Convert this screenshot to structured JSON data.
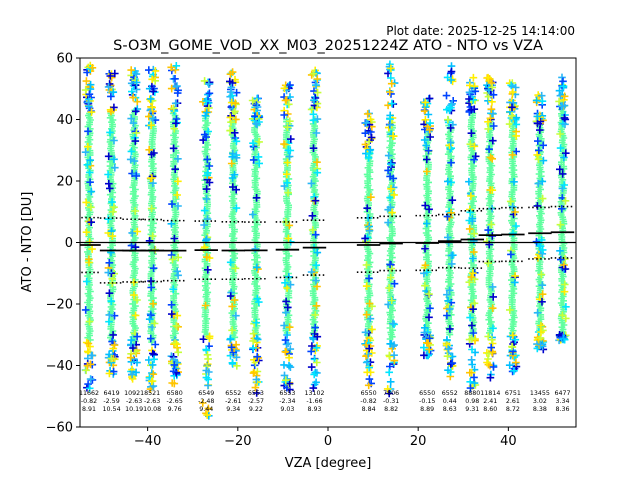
{
  "plot_date": "Plot date: 2025-12-25 14:14:00",
  "chart_data": {
    "type": "scatter",
    "title": "S-O3M_GOME_VOD_XX_M03_20251224Z ATO - NTO vs VZA",
    "xlabel": "VZA [degree]",
    "ylabel": "ATO - NTO [DU]",
    "xlim": [
      -55,
      55
    ],
    "ylim": [
      -60,
      60
    ],
    "xticks": [
      -40,
      -20,
      0,
      20,
      40
    ],
    "xtick_labels": [
      "−40",
      "−20",
      "0",
      "20",
      "40"
    ],
    "yticks": [
      -60,
      -40,
      -20,
      0,
      20,
      40,
      60
    ],
    "ytick_labels": [
      "−60",
      "−40",
      "−20",
      "0",
      "20",
      "40",
      "60"
    ],
    "marker": "+",
    "zero_line": 0,
    "colors": {
      "core": "#5fff9f",
      "scatter": [
        "#00e5ff",
        "#29b6f6",
        "#00bfff",
        "#ffee00",
        "#c6ff3a",
        "#ffc400",
        "#0044ff",
        "#0000cc"
      ],
      "mean_line": "#000000",
      "std_line": "#000000"
    },
    "bins": [
      {
        "vza": -53,
        "count": "11662",
        "mean": -0.82,
        "std": 8.91,
        "mean_label": "-0.82",
        "std_label": "8.91",
        "ymin": -48,
        "ymax": 58,
        "core_min": -32,
        "core_max": 42
      },
      {
        "vza": -48,
        "count": "6419",
        "mean": -2.59,
        "std": 10.54,
        "mean_label": "-2.59",
        "std_label": "10.54",
        "ymin": -43,
        "ymax": 55,
        "core_min": -32,
        "core_max": 42
      },
      {
        "vza": -43,
        "count": "10921",
        "mean": -2.63,
        "std": 10.19,
        "mean_label": "-2.63",
        "std_label": "10.19",
        "ymin": -45,
        "ymax": 57,
        "core_min": -33,
        "core_max": 43
      },
      {
        "vza": -39,
        "count": "8521",
        "mean": -2.63,
        "std": 10.08,
        "mean_label": "-2.63",
        "std_label": "10.08",
        "ymin": -48,
        "ymax": 58,
        "core_min": -33,
        "core_max": 42
      },
      {
        "vza": -34,
        "count": "6580",
        "mean": -2.65,
        "std": 9.76,
        "mean_label": "-2.65",
        "std_label": "9.76",
        "ymin": -46,
        "ymax": 58,
        "core_min": -32,
        "core_max": 42
      },
      {
        "vza": -27,
        "count": "6549",
        "mean": -2.48,
        "std": 9.44,
        "mean_label": "-2.48",
        "std_label": "9.44",
        "ymin": -58,
        "ymax": 53,
        "core_min": -31,
        "core_max": 41
      },
      {
        "vza": -21,
        "count": "6552",
        "mean": -2.61,
        "std": 9.34,
        "mean_label": "-2.61",
        "std_label": "9.34",
        "ymin": -41,
        "ymax": 56,
        "core_min": -31,
        "core_max": 40
      },
      {
        "vza": -16,
        "count": "6553",
        "mean": -2.57,
        "std": 9.22,
        "mean_label": "-2.57",
        "std_label": "9.22",
        "ymin": -49,
        "ymax": 47,
        "core_min": -30,
        "core_max": 38
      },
      {
        "vza": -9,
        "count": "6553",
        "mean": -2.34,
        "std": 9.03,
        "mean_label": "-2.34",
        "std_label": "9.03",
        "ymin": -48,
        "ymax": 55,
        "core_min": -30,
        "core_max": 40
      },
      {
        "vza": -3,
        "count": "13102",
        "mean": -1.66,
        "std": 8.93,
        "mean_label": "-1.66",
        "std_label": "8.93",
        "ymin": -48,
        "ymax": 56,
        "core_min": -30,
        "core_max": 40
      },
      {
        "vza": 9,
        "count": "6550",
        "mean": -0.82,
        "std": 8.84,
        "mean_label": "-0.82",
        "std_label": "8.84",
        "ymin": -47,
        "ymax": 42,
        "core_min": -31,
        "core_max": 30
      },
      {
        "vza": 14,
        "count": "7806",
        "mean": -0.31,
        "std": 8.82,
        "mean_label": "-0.31",
        "std_label": "8.82",
        "ymin": -50,
        "ymax": 58,
        "core_min": -32,
        "core_max": 38
      },
      {
        "vza": 22,
        "count": "6550",
        "mean": -0.15,
        "std": 8.89,
        "mean_label": "-0.15",
        "std_label": "8.89",
        "ymin": -37,
        "ymax": 47,
        "core_min": -30,
        "core_max": 36
      },
      {
        "vza": 27,
        "count": "6552",
        "mean": 0.44,
        "std": 8.63,
        "mean_label": "0.44",
        "std_label": "8.63",
        "ymin": -44,
        "ymax": 58,
        "core_min": -30,
        "core_max": 38
      },
      {
        "vza": 32,
        "count": "8880",
        "mean": 0.98,
        "std": 9.31,
        "mean_label": "0.98",
        "std_label": "9.31",
        "ymin": -48,
        "ymax": 56,
        "core_min": -31,
        "core_max": 42
      },
      {
        "vza": 36,
        "count": "11814",
        "mean": 2.41,
        "std": 8.6,
        "mean_label": "2.41",
        "std_label": "8.60",
        "ymin": -44,
        "ymax": 54,
        "core_min": -30,
        "core_max": 40
      },
      {
        "vza": 41,
        "count": "6751",
        "mean": 2.61,
        "std": 8.72,
        "mean_label": "2.61",
        "std_label": "8.72",
        "ymin": -42,
        "ymax": 52,
        "core_min": -30,
        "core_max": 40
      },
      {
        "vza": 47,
        "count": "13455",
        "mean": 3.02,
        "std": 8.38,
        "mean_label": "3.02",
        "std_label": "8.38",
        "ymin": -35,
        "ymax": 48,
        "core_min": -29,
        "core_max": 38
      },
      {
        "vza": 52,
        "count": "6477",
        "mean": 3.34,
        "std": 8.36,
        "mean_label": "3.34",
        "std_label": "8.36",
        "ymin": -32,
        "ymax": 54,
        "core_min": -30,
        "core_max": 44
      }
    ]
  }
}
